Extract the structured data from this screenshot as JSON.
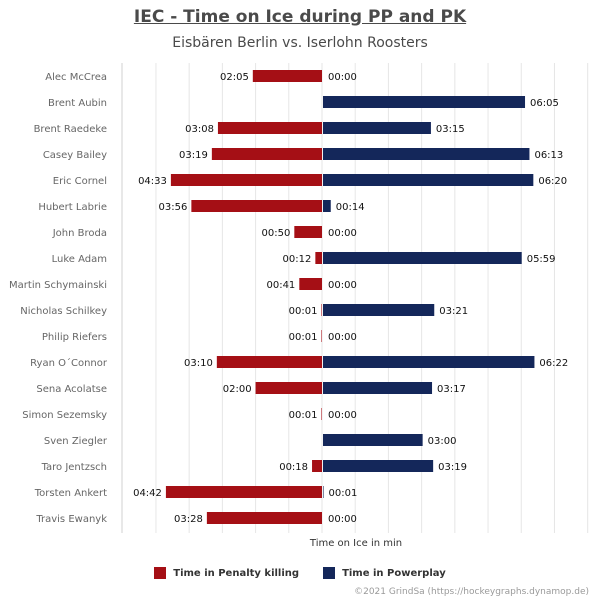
{
  "header": {
    "title": "IEC - Time on Ice during PP and PK",
    "subtitle": "Eisbären Berlin vs. Iserlohn Roosters"
  },
  "colors": {
    "pk": "#a50f15",
    "pp": "#14275a"
  },
  "legend": {
    "pk_label": "Time in Penalty killing",
    "pp_label": "Time in Powerplay"
  },
  "credit": "©2021 GrindSa (https://hockeygraphs.dynamop.de)",
  "chart_data": {
    "type": "bar",
    "orientation": "horizontal-diverging",
    "xlabel": "Time on Ice in min",
    "categories": [
      "Alec McCrea",
      "Brent Aubin",
      "Brent Raedeke",
      "Casey Bailey",
      "Eric Cornel",
      "Hubert Labrie",
      "John Broda",
      "Luke Adam",
      "Martin Schymainski",
      "Nicholas Schilkey",
      "Philip Riefers",
      "Ryan O´Connor",
      "Sena Acolatse",
      "Simon Sezemsky",
      "Sven Ziegler",
      "Taro Jentzsch",
      "Torsten Ankert",
      "Travis Ewanyk"
    ],
    "series": [
      {
        "name": "Time in Penalty killing",
        "direction": "left",
        "values": [
          125,
          null,
          188,
          199,
          273,
          236,
          50,
          12,
          41,
          1,
          1,
          190,
          120,
          1,
          null,
          18,
          282,
          208
        ],
        "labels": [
          "02:05",
          null,
          "03:08",
          "03:19",
          "04:33",
          "03:56",
          "00:50",
          "00:12",
          "00:41",
          "00:01",
          "00:01",
          "03:10",
          "02:00",
          "00:01",
          null,
          "00:18",
          "04:42",
          "03:28"
        ]
      },
      {
        "name": "Time in Powerplay",
        "direction": "right",
        "values": [
          0,
          365,
          195,
          373,
          380,
          14,
          0,
          359,
          0,
          201,
          0,
          382,
          197,
          0,
          180,
          199,
          1,
          0
        ],
        "labels": [
          "00:00",
          "06:05",
          "03:15",
          "06:13",
          "06:20",
          "00:14",
          "00:00",
          "05:59",
          "00:00",
          "03:21",
          "00:00",
          "06:22",
          "03:17",
          "00:00",
          "03:00",
          "03:19",
          "00:01",
          "00:00"
        ]
      }
    ]
  }
}
